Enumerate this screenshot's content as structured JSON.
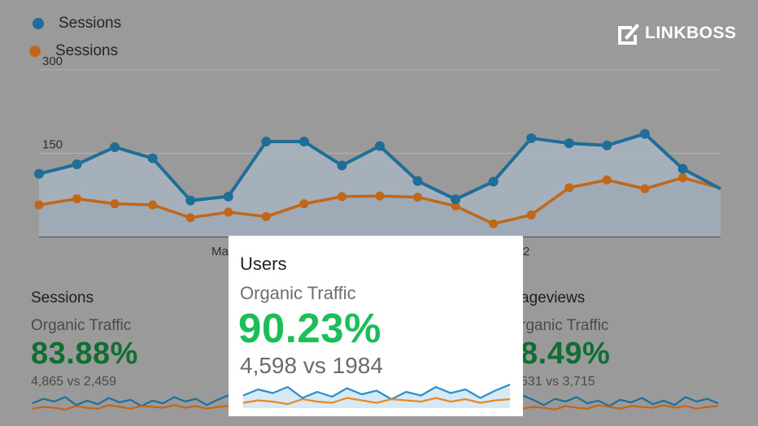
{
  "brand": {
    "name": "LINKBOSS"
  },
  "legend": [
    {
      "label": "Sessions",
      "color": "#1f6e97"
    },
    {
      "label": "Sessions",
      "color": "#c0671a"
    }
  ],
  "chart_data": {
    "type": "line",
    "y_ticks": [
      "300",
      "150"
    ],
    "ylim": [
      0,
      300
    ],
    "x_tick_labels": [
      "Ma",
      "2"
    ],
    "series": [
      {
        "name": "Sessions",
        "color": "#1f6e97",
        "values": [
          113,
          130,
          161,
          141,
          65,
          72,
          171,
          171,
          128,
          163,
          100,
          67,
          99,
          177,
          168,
          164,
          185,
          122,
          86
        ]
      },
      {
        "name": "Sessions",
        "color": "#c0671a",
        "values": [
          57,
          68,
          59,
          57,
          34,
          44,
          36,
          59,
          72,
          73,
          71,
          55,
          23,
          39,
          88,
          102,
          86,
          106,
          87
        ]
      }
    ]
  },
  "cards": {
    "left": {
      "title": "Sessions",
      "subtitle": "Organic Traffic",
      "percent": "83.88%",
      "comparison": "4,865 vs 2,459"
    },
    "right": {
      "title": "ageviews",
      "subtitle": "rganic Traffic",
      "percent": "8.49%",
      "comparison": "631 vs 3,715"
    }
  },
  "popup": {
    "title": "Users",
    "subtitle": "Organic Traffic",
    "percent": "90.23%",
    "comparison": "4,598 vs 1984",
    "sparkline": {
      "series_a": [
        0.45,
        0.7,
        0.55,
        0.8,
        0.35,
        0.6,
        0.4,
        0.75,
        0.5,
        0.65,
        0.3,
        0.6,
        0.45,
        0.8,
        0.55,
        0.7,
        0.35,
        0.65,
        0.9
      ],
      "series_b": [
        0.15,
        0.25,
        0.2,
        0.1,
        0.3,
        0.2,
        0.15,
        0.35,
        0.25,
        0.15,
        0.3,
        0.25,
        0.2,
        0.35,
        0.2,
        0.3,
        0.15,
        0.25,
        0.3
      ]
    }
  }
}
